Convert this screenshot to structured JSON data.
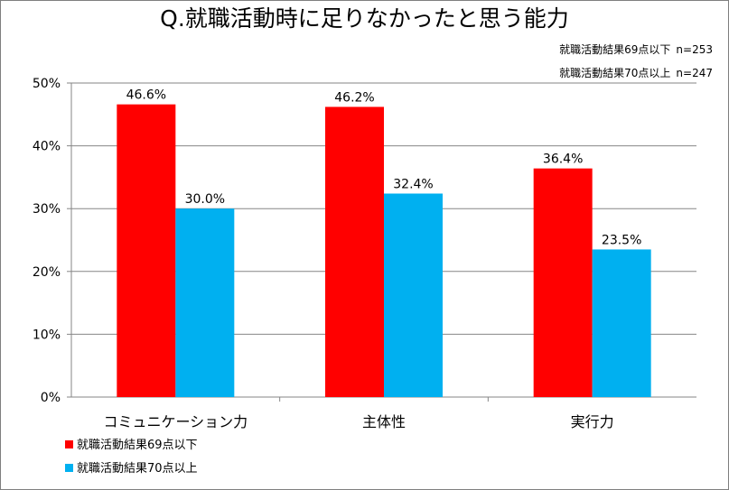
{
  "title": "Q.就職活動時に足りなかったと思う能力",
  "notes": [
    {
      "label": "就職活動結果69点以下",
      "n": "n=253"
    },
    {
      "label": "就職活動結果70点以上",
      "n": "n=247"
    }
  ],
  "colors": {
    "series1": "#ff0000",
    "series2": "#00b0f0"
  },
  "chart_data": {
    "type": "bar",
    "title": "Q.就職活動時に足りなかったと思う能力",
    "categories": [
      "コミュニケーション力",
      "主体性",
      "実行力"
    ],
    "series": [
      {
        "name": "就職活動結果69点以下",
        "values": [
          46.6,
          46.2,
          36.4
        ],
        "labels": [
          "46.6%",
          "46.2%",
          "36.4%"
        ]
      },
      {
        "name": "就職活動結果70点以上",
        "values": [
          30.0,
          32.4,
          23.5
        ],
        "labels": [
          "30.0%",
          "32.4%",
          "23.5%"
        ]
      }
    ],
    "yticks": [
      "0%",
      "10%",
      "20%",
      "30%",
      "40%",
      "50%"
    ],
    "ylim": [
      0,
      50
    ],
    "grid": true,
    "legend": "bottom-left"
  }
}
